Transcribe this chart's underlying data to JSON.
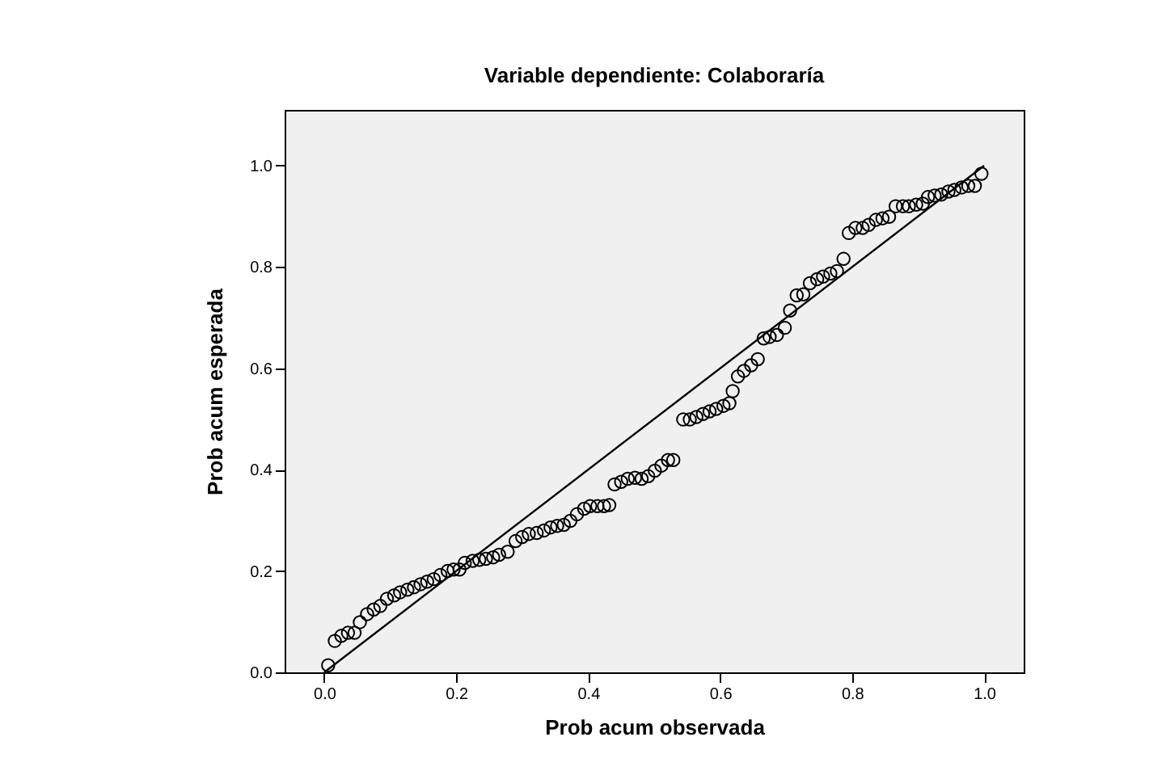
{
  "chart_data": {
    "type": "scatter",
    "title": "Variable dependiente: Colaboraría",
    "xlabel": "Prob acum observada",
    "ylabel": "Prob acum esperada",
    "xlim": [
      -0.06,
      1.06
    ],
    "ylim": [
      0,
      1.11
    ],
    "xticks": [
      {
        "value": 0,
        "label": "0.0"
      },
      {
        "value": 0.2,
        "label": "0.2"
      },
      {
        "value": 0.4,
        "label": "0.4"
      },
      {
        "value": 0.6,
        "label": "0.6"
      },
      {
        "value": 0.8,
        "label": "0.8"
      },
      {
        "value": 1,
        "label": "1.0"
      }
    ],
    "yticks": [
      {
        "value": 0,
        "label": "0.0"
      },
      {
        "value": 0.2,
        "label": "0.2"
      },
      {
        "value": 0.4,
        "label": "0.4"
      },
      {
        "value": 0.6,
        "label": "0.6"
      },
      {
        "value": 0.8,
        "label": "0.8"
      },
      {
        "value": 1,
        "label": "1.0"
      }
    ],
    "grid": false,
    "marker": "circle",
    "series": [
      {
        "color": "#000000",
        "x": [
          0.006,
          0.016,
          0.026,
          0.036,
          0.046,
          0.054,
          0.065,
          0.075,
          0.085,
          0.095,
          0.106,
          0.115,
          0.126,
          0.136,
          0.146,
          0.156,
          0.166,
          0.176,
          0.187,
          0.196,
          0.205,
          0.213,
          0.225,
          0.235,
          0.245,
          0.256,
          0.265,
          0.278,
          0.29,
          0.3,
          0.31,
          0.322,
          0.333,
          0.343,
          0.353,
          0.363,
          0.373,
          0.383,
          0.394,
          0.403,
          0.414,
          0.424,
          0.432,
          0.44,
          0.45,
          0.46,
          0.471,
          0.481,
          0.491,
          0.501,
          0.511,
          0.521,
          0.529,
          0.544,
          0.554,
          0.564,
          0.574,
          0.584,
          0.594,
          0.605,
          0.614,
          0.619,
          0.627,
          0.636,
          0.647,
          0.657,
          0.666,
          0.675,
          0.686,
          0.698,
          0.706,
          0.716,
          0.726,
          0.736,
          0.747,
          0.756,
          0.767,
          0.777,
          0.787,
          0.795,
          0.805,
          0.816,
          0.825,
          0.836,
          0.846,
          0.856,
          0.866,
          0.877,
          0.886,
          0.897,
          0.907,
          0.915,
          0.925,
          0.935,
          0.946,
          0.955,
          0.966,
          0.976,
          0.986,
          0.996
        ],
        "values": [
          0.014,
          0.062,
          0.072,
          0.078,
          0.078,
          0.099,
          0.115,
          0.124,
          0.131,
          0.145,
          0.152,
          0.158,
          0.163,
          0.168,
          0.174,
          0.179,
          0.184,
          0.192,
          0.2,
          0.203,
          0.203,
          0.216,
          0.22,
          0.222,
          0.224,
          0.227,
          0.232,
          0.238,
          0.259,
          0.267,
          0.273,
          0.275,
          0.28,
          0.286,
          0.289,
          0.291,
          0.299,
          0.312,
          0.323,
          0.328,
          0.328,
          0.328,
          0.33,
          0.371,
          0.376,
          0.382,
          0.384,
          0.382,
          0.387,
          0.398,
          0.408,
          0.419,
          0.419,
          0.499,
          0.499,
          0.504,
          0.51,
          0.515,
          0.52,
          0.526,
          0.531,
          0.555,
          0.584,
          0.595,
          0.606,
          0.618,
          0.659,
          0.662,
          0.666,
          0.68,
          0.714,
          0.744,
          0.746,
          0.768,
          0.776,
          0.781,
          0.787,
          0.792,
          0.816,
          0.867,
          0.877,
          0.877,
          0.883,
          0.893,
          0.896,
          0.899,
          0.92,
          0.92,
          0.92,
          0.923,
          0.925,
          0.938,
          0.941,
          0.943,
          0.949,
          0.952,
          0.957,
          0.96,
          0.96,
          0.984
        ]
      },
      {
        "type": "line",
        "color": "#000000",
        "x": [
          0,
          1
        ],
        "values": [
          0,
          1
        ],
        "line_style": "solid",
        "marker": "none"
      }
    ]
  }
}
